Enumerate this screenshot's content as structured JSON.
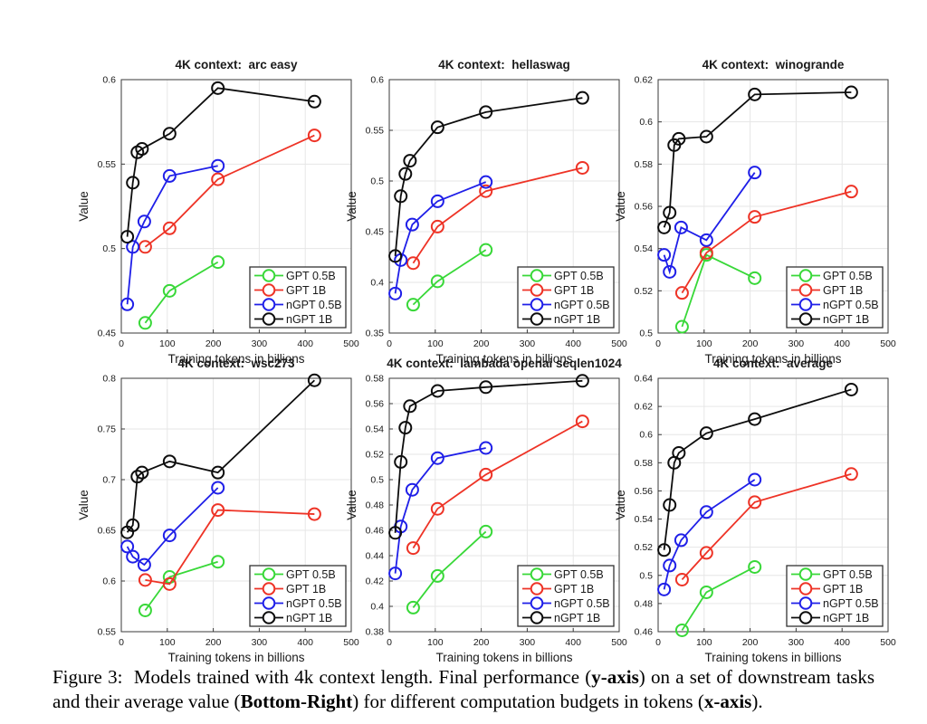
{
  "page": {
    "background": "#ffffff"
  },
  "caption": {
    "segments": [
      {
        "text": "Figure 3:  Models trained with 4k context length. Final performance (",
        "bold": false
      },
      {
        "text": "y-axis",
        "bold": true
      },
      {
        "text": ") on a set of downstream tasks and their average value (",
        "bold": false
      },
      {
        "text": "Bottom-Right",
        "bold": true
      },
      {
        "text": ") for different computation budgets in tokens (",
        "bold": false
      },
      {
        "text": "x-axis",
        "bold": true
      },
      {
        "text": ").",
        "bold": false
      }
    ]
  },
  "legend_entries": [
    "GPT 0.5B",
    "GPT 1B",
    "nGPT 0.5B",
    "nGPT 1B"
  ],
  "colors": {
    "GPT 0.5B": "#38d838",
    "GPT 1B": "#ee3326",
    "nGPT 0.5B": "#1f1fe8",
    "nGPT 1B": "#0d0d0d",
    "grid": "#e6e6e6",
    "axes": "#3a3a3a"
  },
  "chart_data": [
    {
      "type": "line",
      "title": "4K context:  arc easy",
      "xlabel": "Training tokens in billions",
      "ylabel": "Value",
      "xlim": [
        0,
        500
      ],
      "ylim": [
        0.45,
        0.6
      ],
      "xticks": [
        0,
        100,
        200,
        300,
        400,
        500
      ],
      "yticks": [
        0.45,
        0.5,
        0.55,
        0.6
      ],
      "grid": true,
      "legend_position": "bottom-right",
      "series": [
        {
          "name": "GPT 0.5B",
          "x": [
            52,
            105,
            210
          ],
          "y": [
            0.456,
            0.475,
            0.492
          ]
        },
        {
          "name": "GPT 1B",
          "x": [
            52,
            105,
            210,
            420
          ],
          "y": [
            0.501,
            0.512,
            0.541,
            0.567
          ]
        },
        {
          "name": "nGPT 0.5B",
          "x": [
            13,
            25,
            50,
            105,
            210
          ],
          "y": [
            0.467,
            0.501,
            0.516,
            0.543,
            0.549
          ]
        },
        {
          "name": "nGPT 1B",
          "x": [
            13,
            25,
            35,
            45,
            105,
            210,
            420
          ],
          "y": [
            0.507,
            0.539,
            0.557,
            0.559,
            0.568,
            0.595,
            0.587
          ]
        }
      ]
    },
    {
      "type": "line",
      "title": "4K context:  hellaswag",
      "xlabel": "Training tokens in billions",
      "ylabel": "Value",
      "xlim": [
        0,
        500
      ],
      "ylim": [
        0.35,
        0.6
      ],
      "xticks": [
        0,
        100,
        200,
        300,
        400,
        500
      ],
      "yticks": [
        0.35,
        0.4,
        0.45,
        0.5,
        0.55,
        0.6
      ],
      "grid": true,
      "legend_position": "bottom-right",
      "series": [
        {
          "name": "GPT 0.5B",
          "x": [
            52,
            105,
            210
          ],
          "y": [
            0.378,
            0.401,
            0.432
          ]
        },
        {
          "name": "GPT 1B",
          "x": [
            52,
            105,
            210,
            420
          ],
          "y": [
            0.419,
            0.455,
            0.49,
            0.513
          ]
        },
        {
          "name": "nGPT 0.5B",
          "x": [
            13,
            25,
            50,
            105,
            210
          ],
          "y": [
            0.389,
            0.422,
            0.457,
            0.48,
            0.499
          ]
        },
        {
          "name": "nGPT 1B",
          "x": [
            13,
            25,
            35,
            45,
            105,
            210,
            420
          ],
          "y": [
            0.426,
            0.485,
            0.507,
            0.52,
            0.553,
            0.568,
            0.582
          ]
        }
      ]
    },
    {
      "type": "line",
      "title": "4K context:  winogrande",
      "xlabel": "Training tokens in billions",
      "ylabel": "Value",
      "xlim": [
        0,
        500
      ],
      "ylim": [
        0.5,
        0.62
      ],
      "xticks": [
        0,
        100,
        200,
        300,
        400,
        500
      ],
      "yticks": [
        0.5,
        0.52,
        0.54,
        0.56,
        0.58,
        0.6,
        0.62
      ],
      "grid": true,
      "legend_position": "bottom-right",
      "series": [
        {
          "name": "GPT 0.5B",
          "x": [
            52,
            105,
            210
          ],
          "y": [
            0.503,
            0.537,
            0.526
          ]
        },
        {
          "name": "GPT 1B",
          "x": [
            52,
            105,
            210,
            420
          ],
          "y": [
            0.519,
            0.538,
            0.555,
            0.567
          ]
        },
        {
          "name": "nGPT 0.5B",
          "x": [
            13,
            25,
            50,
            105,
            210
          ],
          "y": [
            0.537,
            0.529,
            0.55,
            0.544,
            0.576
          ]
        },
        {
          "name": "nGPT 1B",
          "x": [
            13,
            25,
            35,
            45,
            105,
            210,
            420
          ],
          "y": [
            0.55,
            0.557,
            0.589,
            0.592,
            0.593,
            0.613,
            0.614
          ]
        }
      ]
    },
    {
      "type": "line",
      "title": "4K context:  wsc273",
      "xlabel": "Training tokens in billions",
      "ylabel": "Value",
      "xlim": [
        0,
        500
      ],
      "ylim": [
        0.55,
        0.8
      ],
      "xticks": [
        0,
        100,
        200,
        300,
        400,
        500
      ],
      "yticks": [
        0.55,
        0.6,
        0.65,
        0.7,
        0.75,
        0.8
      ],
      "grid": true,
      "legend_position": "bottom-right",
      "series": [
        {
          "name": "GPT 0.5B",
          "x": [
            52,
            105,
            210
          ],
          "y": [
            0.571,
            0.604,
            0.619
          ]
        },
        {
          "name": "GPT 1B",
          "x": [
            52,
            105,
            210,
            420
          ],
          "y": [
            0.601,
            0.597,
            0.67,
            0.666
          ]
        },
        {
          "name": "nGPT 0.5B",
          "x": [
            13,
            25,
            50,
            105,
            210
          ],
          "y": [
            0.634,
            0.624,
            0.616,
            0.645,
            0.692
          ]
        },
        {
          "name": "nGPT 1B",
          "x": [
            13,
            25,
            35,
            45,
            105,
            210,
            420
          ],
          "y": [
            0.648,
            0.655,
            0.703,
            0.707,
            0.718,
            0.707,
            0.798
          ]
        }
      ]
    },
    {
      "type": "line",
      "title": "4K context:  lambada openai seqlen1024",
      "xlabel": "Training tokens in billions",
      "ylabel": "Value",
      "xlim": [
        0,
        500
      ],
      "ylim": [
        0.38,
        0.58
      ],
      "xticks": [
        0,
        100,
        200,
        300,
        400,
        500
      ],
      "yticks": [
        0.38,
        0.4,
        0.42,
        0.44,
        0.46,
        0.48,
        0.5,
        0.52,
        0.54,
        0.56,
        0.58
      ],
      "grid": true,
      "legend_position": "bottom-right",
      "series": [
        {
          "name": "GPT 0.5B",
          "x": [
            52,
            105,
            210
          ],
          "y": [
            0.399,
            0.424,
            0.459
          ]
        },
        {
          "name": "GPT 1B",
          "x": [
            52,
            105,
            210,
            420
          ],
          "y": [
            0.446,
            0.477,
            0.504,
            0.546
          ]
        },
        {
          "name": "nGPT 0.5B",
          "x": [
            13,
            25,
            50,
            105,
            210
          ],
          "y": [
            0.426,
            0.463,
            0.492,
            0.517,
            0.525
          ]
        },
        {
          "name": "nGPT 1B",
          "x": [
            13,
            25,
            35,
            45,
            105,
            210,
            420
          ],
          "y": [
            0.458,
            0.514,
            0.541,
            0.558,
            0.57,
            0.573,
            0.578
          ]
        }
      ]
    },
    {
      "type": "line",
      "title": "4K context:  average",
      "xlabel": "Training tokens in billions",
      "ylabel": "Value",
      "xlim": [
        0,
        500
      ],
      "ylim": [
        0.46,
        0.64
      ],
      "xticks": [
        0,
        100,
        200,
        300,
        400,
        500
      ],
      "yticks": [
        0.46,
        0.48,
        0.5,
        0.52,
        0.54,
        0.56,
        0.58,
        0.6,
        0.62,
        0.64
      ],
      "grid": true,
      "legend_position": "bottom-right",
      "series": [
        {
          "name": "GPT 0.5B",
          "x": [
            52,
            105,
            210
          ],
          "y": [
            0.461,
            0.488,
            0.506
          ]
        },
        {
          "name": "GPT 1B",
          "x": [
            52,
            105,
            210,
            420
          ],
          "y": [
            0.497,
            0.516,
            0.552,
            0.572
          ]
        },
        {
          "name": "nGPT 0.5B",
          "x": [
            13,
            25,
            50,
            105,
            210
          ],
          "y": [
            0.49,
            0.507,
            0.525,
            0.545,
            0.568
          ]
        },
        {
          "name": "nGPT 1B",
          "x": [
            13,
            25,
            35,
            45,
            105,
            210,
            420
          ],
          "y": [
            0.518,
            0.55,
            0.58,
            0.587,
            0.601,
            0.611,
            0.632
          ]
        }
      ]
    }
  ]
}
